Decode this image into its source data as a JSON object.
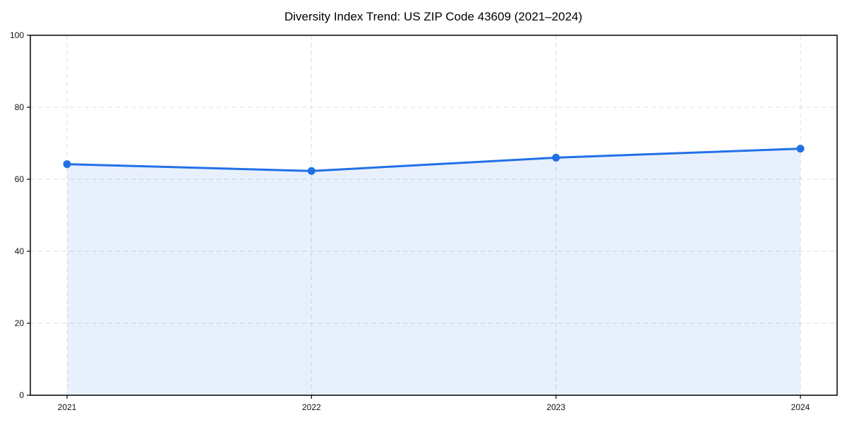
{
  "chart_data": {
    "type": "area",
    "title": "Diversity Index Trend: US ZIP Code 43609 (2021–2024)",
    "xlabel": "",
    "ylabel": "",
    "categories": [
      "2021",
      "2022",
      "2023",
      "2024"
    ],
    "x": [
      2021,
      2022,
      2023,
      2024
    ],
    "series": [
      {
        "name": "Diversity Index",
        "values": [
          64.2,
          62.3,
          66.0,
          68.5
        ]
      }
    ],
    "ylim": [
      0,
      100
    ],
    "yticks": [
      0,
      20,
      40,
      60,
      80,
      100
    ],
    "ytick_labels": [
      "0",
      "20",
      "40",
      "60",
      "80",
      "100"
    ],
    "xtick_labels": [
      "2021",
      "2022",
      "2023",
      "2024"
    ],
    "grid": true,
    "grid_style": "dashed",
    "legend": false,
    "marker": "circle",
    "colors": {
      "line": "#2170e8",
      "marker": "#2170e8",
      "fill": "rgba(33,112,232,0.10)",
      "grid": "#dcdcdc",
      "axis": "#000000",
      "tick_text": "#111111",
      "title_text": "#000000",
      "background": "#ffffff"
    }
  }
}
